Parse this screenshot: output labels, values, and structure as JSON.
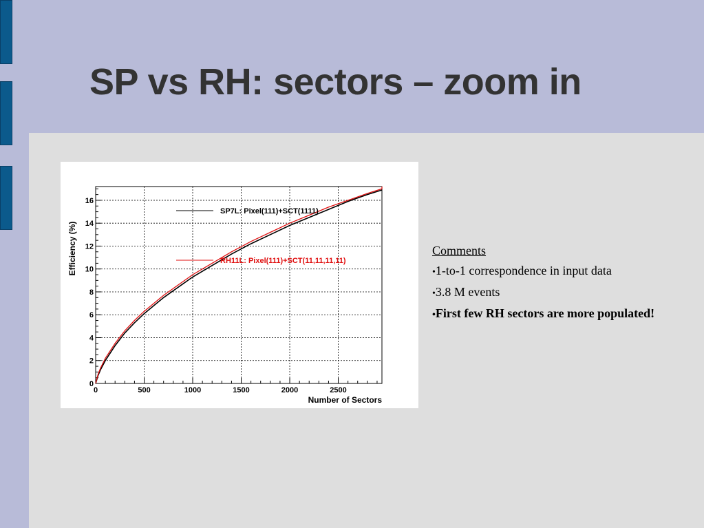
{
  "slide": {
    "title": "SP vs RH: sectors – zoom in"
  },
  "comments": {
    "heading": "Comments",
    "items": [
      "1-to-1 correspondence in input data",
      "3.8 M events",
      "First few RH sectors are more populated!"
    ]
  },
  "colors": {
    "background": "#b8bbd8",
    "panel": "#dedede",
    "accent_bar": "#0b5a8c",
    "title_text": "#333333",
    "series_sp": "#000000",
    "series_rh": "#e01010"
  },
  "chart_data": {
    "type": "line",
    "xlabel": "Number of Sectors",
    "ylabel": "Efficiency (%)",
    "xlim": [
      0,
      2950
    ],
    "ylim": [
      0,
      17.2
    ],
    "x_ticks": [
      "0",
      "500",
      "1000",
      "1500",
      "2000",
      "2500"
    ],
    "y_ticks": [
      "0",
      "2",
      "4",
      "6",
      "8",
      "10",
      "12",
      "14",
      "16"
    ],
    "grid": true,
    "series": [
      {
        "name": "SP7L:  Pixel(111)+SCT(1111)",
        "color": "#000000",
        "x": [
          0,
          25,
          50,
          100,
          200,
          300,
          400,
          500,
          600,
          700,
          800,
          900,
          1000,
          1200,
          1400,
          1600,
          1800,
          2000,
          2200,
          2400,
          2600,
          2800,
          2950
        ],
        "y": [
          0,
          0.7,
          1.2,
          2.0,
          3.3,
          4.4,
          5.3,
          6.1,
          6.8,
          7.5,
          8.1,
          8.7,
          9.3,
          10.3,
          11.3,
          12.2,
          13.0,
          13.8,
          14.5,
          15.2,
          15.9,
          16.5,
          16.9
        ]
      },
      {
        "name": "RH11L: Pixel(111)+SCT(11,11,11,11)",
        "color": "#e01010",
        "x": [
          0,
          25,
          50,
          100,
          200,
          300,
          400,
          500,
          600,
          700,
          800,
          900,
          1000,
          1200,
          1400,
          1600,
          1800,
          2000,
          2200,
          2400,
          2600,
          2800,
          2950
        ],
        "y": [
          0,
          0.8,
          1.35,
          2.2,
          3.5,
          4.6,
          5.5,
          6.3,
          7.0,
          7.7,
          8.3,
          8.9,
          9.5,
          10.5,
          11.5,
          12.4,
          13.2,
          14.0,
          14.7,
          15.4,
          16.0,
          16.6,
          17.0
        ]
      }
    ],
    "legend": [
      "SP7L:  Pixel(111)+SCT(1111)",
      "RH11L: Pixel(111)+SCT(11,11,11,11)"
    ]
  }
}
